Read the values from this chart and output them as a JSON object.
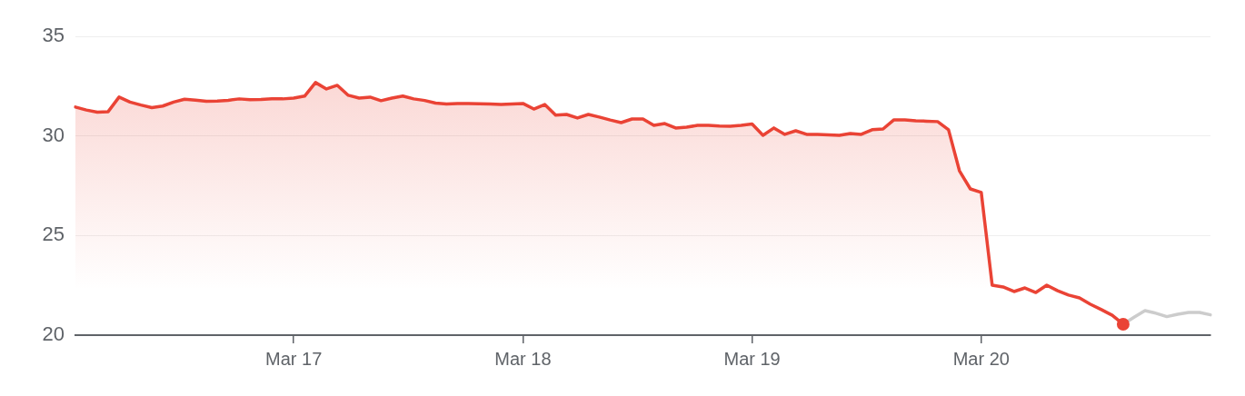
{
  "chart_data": {
    "type": "area",
    "categories": [
      null,
      null,
      null,
      null,
      null,
      null,
      null,
      null,
      null,
      null,
      null,
      null,
      null,
      null,
      null,
      null,
      null,
      null,
      null,
      null,
      "Mar 17",
      null,
      null,
      null,
      null,
      null,
      null,
      null,
      null,
      null,
      null,
      null,
      null,
      null,
      null,
      null,
      null,
      null,
      null,
      null,
      null,
      "Mar 18",
      null,
      null,
      null,
      null,
      null,
      null,
      null,
      null,
      null,
      null,
      null,
      null,
      null,
      null,
      null,
      null,
      null,
      null,
      null,
      null,
      "Mar 19",
      null,
      null,
      null,
      null,
      null,
      null,
      null,
      null,
      null,
      null,
      null,
      null,
      null,
      null,
      null,
      null,
      null,
      null,
      null,
      null,
      "Mar 20",
      null,
      null,
      null,
      null,
      null,
      null,
      null,
      null,
      null,
      null,
      null,
      null,
      null,
      null,
      null,
      null,
      null,
      null,
      null,
      null,
      null
    ],
    "ylim": [
      20,
      35
    ],
    "yticks": [
      20,
      25,
      30,
      35
    ],
    "grid": "y",
    "legend": false,
    "marker": "none",
    "line_style": "solid",
    "series": [
      {
        "color": "#ea4335",
        "values": [
          31.45,
          31.3,
          31.19,
          31.22,
          31.95,
          31.7,
          31.55,
          31.42,
          31.5,
          31.7,
          31.84,
          31.8,
          31.74,
          31.75,
          31.79,
          31.86,
          31.82,
          31.83,
          31.86,
          31.86,
          31.9,
          32.0,
          32.68,
          32.36,
          32.54,
          32.04,
          31.9,
          31.95,
          31.77,
          31.9,
          32.0,
          31.86,
          31.78,
          31.65,
          31.6,
          31.63,
          31.63,
          31.62,
          31.6,
          31.58,
          31.6,
          31.63,
          31.35,
          31.58,
          31.04,
          31.08,
          30.9,
          31.08,
          30.95,
          30.8,
          30.67,
          30.85,
          30.85,
          30.53,
          30.62,
          30.4,
          30.44,
          30.53,
          30.53,
          30.5,
          30.49,
          30.53,
          30.6,
          30.03,
          30.4,
          30.08,
          30.26,
          30.08,
          30.08,
          30.05,
          30.03,
          30.12,
          30.08,
          30.31,
          30.35,
          30.81,
          30.81,
          30.76,
          30.74,
          30.72,
          30.31,
          28.25,
          27.34,
          27.16,
          22.51,
          22.42,
          22.19,
          22.37,
          22.14,
          22.51,
          22.23,
          22.01,
          21.87,
          21.55,
          21.28,
          21.0,
          20.55,
          null,
          null,
          null,
          null,
          null,
          null,
          null,
          null
        ]
      },
      {
        "type": "line",
        "color": "#cccccc",
        "values": [
          null,
          null,
          null,
          null,
          null,
          null,
          null,
          null,
          null,
          null,
          null,
          null,
          null,
          null,
          null,
          null,
          null,
          null,
          null,
          null,
          null,
          null,
          null,
          null,
          null,
          null,
          null,
          null,
          null,
          null,
          null,
          null,
          null,
          null,
          null,
          null,
          null,
          null,
          null,
          null,
          null,
          null,
          null,
          null,
          null,
          null,
          null,
          null,
          null,
          null,
          null,
          null,
          null,
          null,
          null,
          null,
          null,
          null,
          null,
          null,
          null,
          null,
          null,
          null,
          null,
          null,
          null,
          null,
          null,
          null,
          null,
          null,
          null,
          null,
          null,
          null,
          null,
          null,
          null,
          null,
          null,
          null,
          null,
          null,
          null,
          null,
          null,
          null,
          null,
          null,
          null,
          null,
          null,
          null,
          null,
          null,
          20.55,
          20.9,
          21.23,
          21.1,
          20.93,
          21.05,
          21.14,
          21.14,
          21.02
        ]
      },
      {
        "type": "scatter",
        "color": "#ea4335",
        "marker": "circle",
        "values": [
          null,
          null,
          null,
          null,
          null,
          null,
          null,
          null,
          null,
          null,
          null,
          null,
          null,
          null,
          null,
          null,
          null,
          null,
          null,
          null,
          null,
          null,
          null,
          null,
          null,
          null,
          null,
          null,
          null,
          null,
          null,
          null,
          null,
          null,
          null,
          null,
          null,
          null,
          null,
          null,
          null,
          null,
          null,
          null,
          null,
          null,
          null,
          null,
          null,
          null,
          null,
          null,
          null,
          null,
          null,
          null,
          null,
          null,
          null,
          null,
          null,
          null,
          null,
          null,
          null,
          null,
          null,
          null,
          null,
          null,
          null,
          null,
          null,
          null,
          null,
          null,
          null,
          null,
          null,
          null,
          null,
          null,
          null,
          null,
          null,
          null,
          null,
          null,
          null,
          null,
          null,
          null,
          null,
          null,
          null,
          null,
          20.55,
          null,
          null,
          null,
          null,
          null,
          null,
          null,
          null
        ]
      }
    ]
  }
}
